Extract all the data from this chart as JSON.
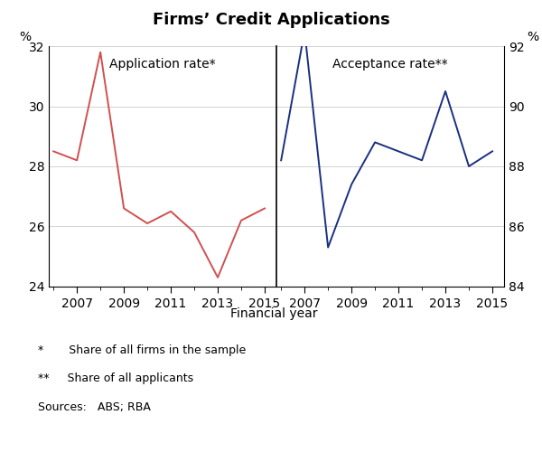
{
  "title": "Firms’ Credit Applications",
  "left_label": "Application rate*",
  "right_label": "Acceptance rate**",
  "xlabel": "Financial year",
  "ylabel_left": "%",
  "ylabel_right": "%",
  "footnotes": [
    "*       Share of all firms in the sample",
    "**     Share of all applicants",
    "Sources:   ABS; RBA"
  ],
  "app_years": [
    2006,
    2007,
    2008,
    2009,
    2010,
    2011,
    2012,
    2013,
    2014,
    2015
  ],
  "app_values": [
    28.5,
    28.2,
    31.8,
    26.6,
    26.1,
    26.5,
    25.8,
    24.3,
    26.2,
    26.6
  ],
  "acc_years": [
    2006,
    2007,
    2008,
    2009,
    2010,
    2011,
    2012,
    2013,
    2014,
    2015
  ],
  "acc_values": [
    88.2,
    92.5,
    85.3,
    87.4,
    88.8,
    88.5,
    88.2,
    90.5,
    88.0,
    88.5
  ],
  "left_color": "#d05050",
  "right_color": "#1a3080",
  "ylim_left": [
    24,
    32
  ],
  "ylim_right": [
    84,
    92
  ],
  "yticks_left": [
    24,
    26,
    28,
    30,
    32
  ],
  "yticks_right": [
    84,
    86,
    88,
    90,
    92
  ],
  "xticks": [
    2007,
    2009,
    2011,
    2013,
    2015
  ],
  "xlim": [
    2005.8,
    2015.5
  ],
  "title_fontsize": 13,
  "label_fontsize": 10,
  "tick_fontsize": 10,
  "footnote_fontsize": 9,
  "annot_fontsize": 10
}
